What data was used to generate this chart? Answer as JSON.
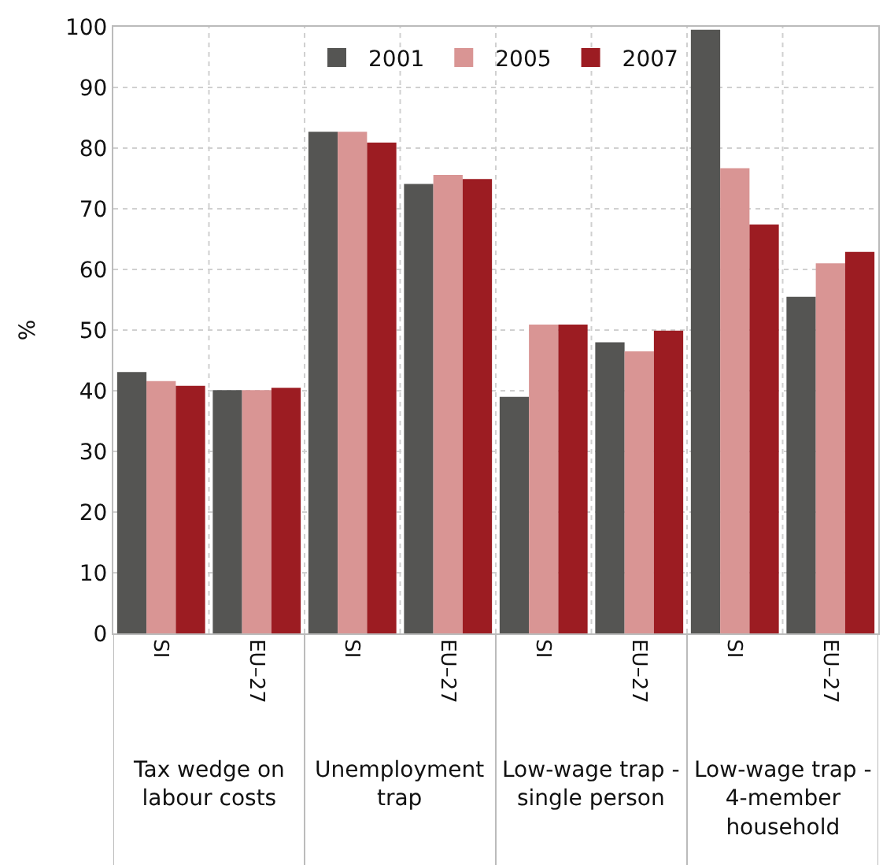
{
  "chart_data": {
    "type": "bar",
    "ylabel": "%",
    "categories": [
      "SI",
      "EU–27",
      "SI",
      "EU–27",
      "SI",
      "EU–27",
      "SI",
      "EU–27"
    ],
    "annotations": [
      "Tax wedge on labour costs",
      "Unemployment trap",
      "Low-wage trap - single person",
      "Low-wage trap - 4-member household"
    ],
    "series": [
      {
        "name": "2001",
        "color": "#555553",
        "values": [
          43.1,
          40.1,
          82.7,
          74.1,
          39.0,
          48.0,
          99.5,
          55.5
        ]
      },
      {
        "name": "2005",
        "color": "#d99594",
        "values": [
          41.6,
          40.1,
          82.7,
          75.6,
          50.9,
          46.5,
          76.7,
          61.0
        ]
      },
      {
        "name": "2007",
        "color": "#9c1c22",
        "values": [
          40.8,
          40.5,
          80.9,
          74.9,
          50.9,
          49.9,
          67.4,
          62.9
        ]
      }
    ],
    "ylim": [
      0,
      100
    ],
    "yticks": [
      0,
      10,
      20,
      30,
      40,
      50,
      60,
      70,
      80,
      90,
      100
    ],
    "grid": true,
    "legend": "top"
  }
}
